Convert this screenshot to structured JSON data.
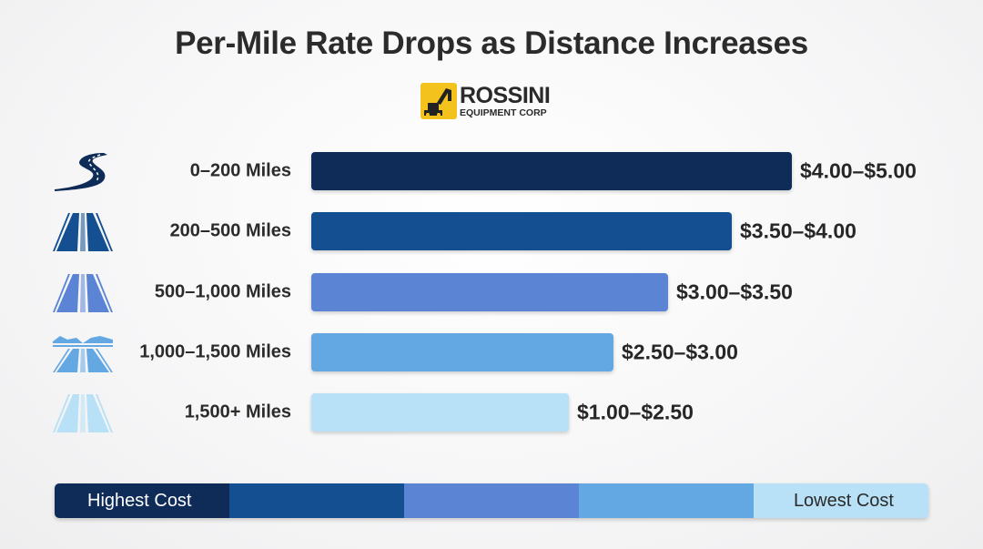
{
  "chart_data": {
    "type": "bar",
    "orientation": "horizontal",
    "title": "Per-Mile Rate Drops as Distance Increases",
    "categories": [
      "0–200 Miles",
      "200–500 Miles",
      "500–1,000 Miles",
      "1,000–1,500 Miles",
      "1,500+ Miles"
    ],
    "ranges": [
      [
        4.0,
        5.0
      ],
      [
        3.5,
        4.0
      ],
      [
        3.0,
        3.5
      ],
      [
        2.5,
        3.0
      ],
      [
        1.0,
        2.5
      ]
    ],
    "value_labels": [
      "$4.00–$5.00",
      "$3.50–$4.00",
      "$3.00–$3.50",
      "$2.50–$3.00",
      "$1.00–$2.50"
    ],
    "unit": "USD per mile",
    "colors": [
      "#0f2b58",
      "#134f91",
      "#5b84d5",
      "#64a8e3",
      "#b8e0f6"
    ],
    "icons": [
      "winding-road-icon",
      "highway-icon",
      "highway-icon",
      "highway-mountains-icon",
      "highway-icon"
    ],
    "grid": false
  },
  "logo": {
    "name": "ROSSINI",
    "sub": "EQUIPMENT CORP",
    "color": "#f4c21c"
  },
  "legend": {
    "high_label": "Highest Cost",
    "low_label": "Lowest Cost"
  }
}
